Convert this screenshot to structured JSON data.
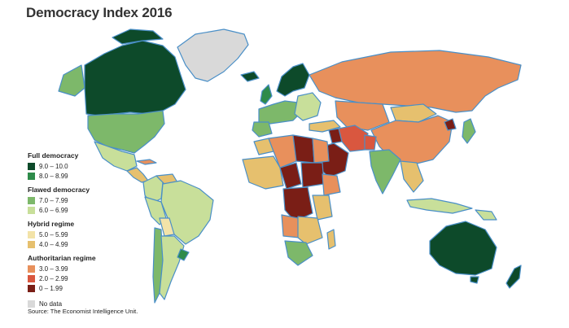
{
  "title": "Democracy Index 2016",
  "colors": {
    "ocean_border": "#4a8fc7",
    "full_1": "#0d4a2a",
    "full_2": "#2e8b4a",
    "flawed_1": "#7db86a",
    "flawed_2": "#c8df9a",
    "hybrid_1": "#f3e3a8",
    "hybrid_2": "#e6c06e",
    "auth_1": "#e8905c",
    "auth_2": "#d9573f",
    "auth_3": "#7a1e16",
    "nodata": "#d9d9d9"
  },
  "legend": {
    "groups": [
      {
        "title": "Full democracy",
        "items": [
          {
            "label": "9.0 – 10.0",
            "color": "#0d4a2a"
          },
          {
            "label": "8.0 – 8.99",
            "color": "#2e8b4a"
          }
        ]
      },
      {
        "title": "Flawed democracy",
        "items": [
          {
            "label": "7.0 – 7.99",
            "color": "#7db86a"
          },
          {
            "label": "6.0 – 6.99",
            "color": "#c8df9a"
          }
        ]
      },
      {
        "title": "Hybrid regime",
        "items": [
          {
            "label": "5.0 – 5.99",
            "color": "#f3e3a8"
          },
          {
            "label": "4.0 – 4.99",
            "color": "#e6c06e"
          }
        ]
      },
      {
        "title": "Authoritarian regime",
        "items": [
          {
            "label": "3.0 – 3.99",
            "color": "#e8905c"
          },
          {
            "label": "2.0 – 2.99",
            "color": "#d9573f"
          },
          {
            "label": "0 – 1.99",
            "color": "#7a1e16"
          }
        ]
      }
    ],
    "nodata": {
      "label": "No data",
      "color": "#d9d9d9"
    }
  },
  "source": "Source: The Economist Intelligence Unit."
}
